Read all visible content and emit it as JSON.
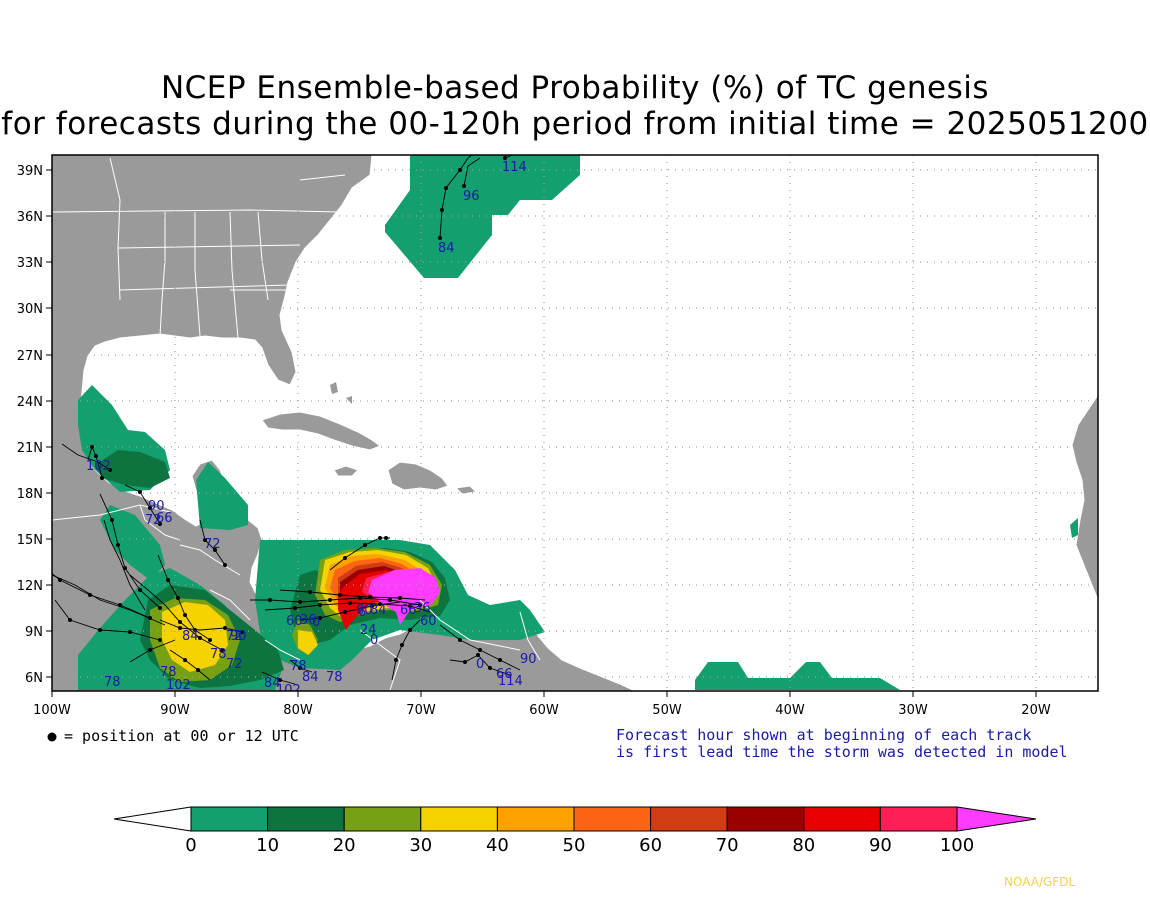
{
  "title_line1": "NCEP Ensemble-based Probability (%) of TC genesis",
  "title_line2": "for forecasts during the 00-120h period from initial time = 2025051200",
  "lat_labels": [
    "39N",
    "36N",
    "33N",
    "30N",
    "27N",
    "24N",
    "21N",
    "18N",
    "15N",
    "12N",
    "9N",
    "6N"
  ],
  "lon_labels": [
    "100W",
    "90W",
    "80W",
    "70W",
    "60W",
    "50W",
    "40W",
    "30W",
    "20W"
  ],
  "legend_position_note": "= position at 00 or 12 UTC",
  "forecast_note_line1": "Forecast hour shown at beginning of each track",
  "forecast_note_line2": "is first lead time the storm was detected in model",
  "colorbar": {
    "ticks": [
      "0",
      "10",
      "20",
      "30",
      "40",
      "50",
      "60",
      "70",
      "80",
      "90",
      "100"
    ],
    "colors": [
      "#14a06e",
      "#0d7440",
      "#78a014",
      "#f5d200",
      "#fba100",
      "#fb6414",
      "#d23c14",
      "#9b0000",
      "#e60000",
      "#ff1e55"
    ],
    "under_color": "#ffffff",
    "over_color": "#ff3cff"
  },
  "track_labels": [
    "114",
    "96",
    "84",
    "102",
    "90",
    "72",
    "66",
    "72",
    "84",
    "78",
    "72",
    "90",
    "78",
    "102",
    "78",
    "84",
    "78",
    "102",
    "72",
    "84",
    "78",
    "24",
    "0",
    "6",
    "90",
    "0",
    "66",
    "114",
    "36",
    "60"
  ],
  "credit": "NOAA/GFDL"
}
